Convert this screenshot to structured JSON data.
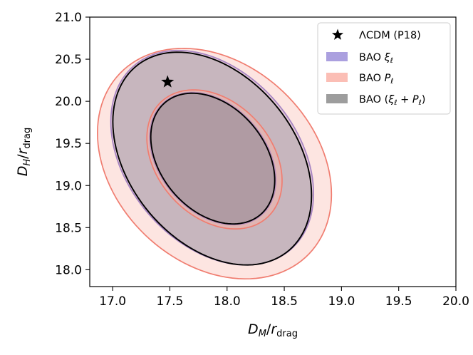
{
  "chart_data": {
    "type": "contour",
    "title": "",
    "xlabel": {
      "main": "D",
      "sub": "M",
      "over": "r",
      "over_sub": "drag"
    },
    "ylabel": {
      "main": "D",
      "sub": "H",
      "over": "r",
      "over_sub": "drag"
    },
    "xlim": [
      16.8,
      20.0
    ],
    "ylim": [
      17.8,
      21.0
    ],
    "xticks": [
      "17.0",
      "17.5",
      "18.0",
      "18.5",
      "19.0",
      "19.5",
      "20.0"
    ],
    "yticks": [
      "18.0",
      "18.5",
      "19.0",
      "19.5",
      "20.0",
      "20.5",
      "21.0"
    ],
    "legend_position": "top-right",
    "reference_point": {
      "name": "ΛCDM (P18)",
      "x": 17.48,
      "y": 20.23,
      "marker": "star",
      "color": "#000000"
    },
    "series": [
      {
        "name": "BAO ξ_ℓ",
        "legend": {
          "base": "BAO ",
          "sym": "ξ",
          "sub": "ℓ"
        },
        "fill": "#9c8fd9",
        "edge": "#7a6bd0",
        "contours": [
          {
            "level": "2σ",
            "cx": 17.87,
            "cy": 19.33,
            "a": 0.8,
            "b": 1.33,
            "tilt_deg": 21
          },
          {
            "level": "1σ",
            "cx": 17.875,
            "cy": 19.32,
            "a": 0.5,
            "b": 0.82,
            "tilt_deg": 21
          }
        ]
      },
      {
        "name": "BAO P_ℓ",
        "legend": {
          "base": "BAO ",
          "sym": "P",
          "sub": "ℓ"
        },
        "fill": "#fab3a8",
        "edge": "#f07d70",
        "contours": [
          {
            "level": "2σ",
            "cx": 17.89,
            "cy": 19.26,
            "a": 0.95,
            "b": 1.42,
            "tilt_deg": 21
          },
          {
            "level": "1σ",
            "cx": 17.89,
            "cy": 19.31,
            "a": 0.54,
            "b": 0.86,
            "tilt_deg": 21
          }
        ]
      },
      {
        "name": "BAO (ξ_ℓ + P_ℓ)",
        "legend": {
          "base": "BAO (",
          "sym": "ξ",
          "sub": "ℓ",
          "mid": " + ",
          "sym2": "P",
          "sub2": "ℓ",
          "tail": ")"
        },
        "fill": "#8c8c8c",
        "edge": "#000000",
        "contours": [
          {
            "level": "2σ",
            "cx": 17.87,
            "cy": 19.32,
            "a": 0.78,
            "b": 1.32,
            "tilt_deg": 21
          },
          {
            "level": "1σ",
            "cx": 17.875,
            "cy": 19.32,
            "a": 0.49,
            "b": 0.81,
            "tilt_deg": 21
          }
        ]
      }
    ]
  }
}
